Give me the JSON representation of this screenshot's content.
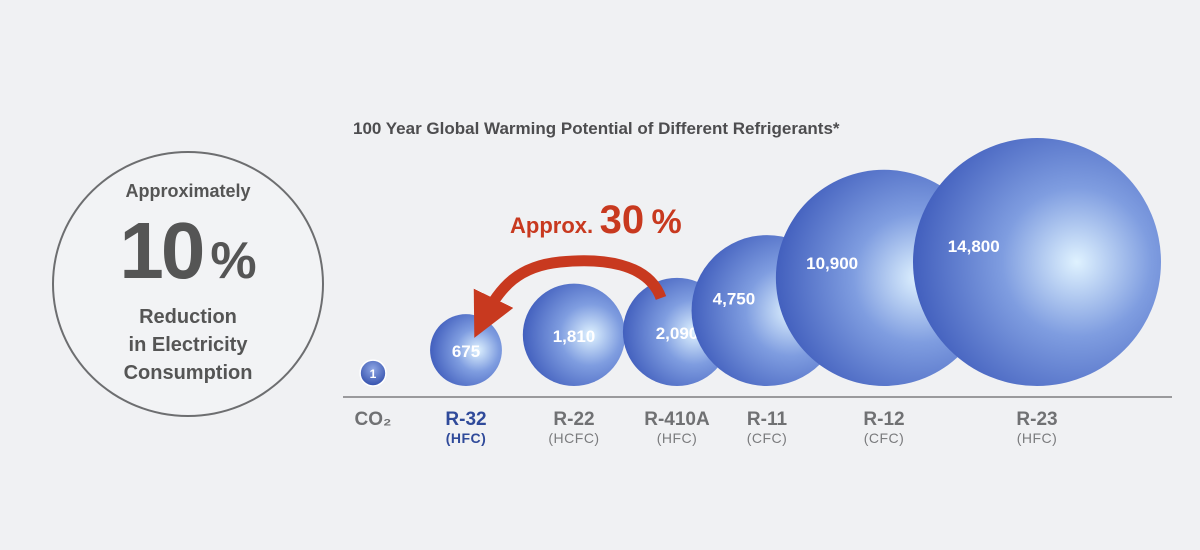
{
  "stat": {
    "intro": "Approximately",
    "value": "10",
    "unit": "%",
    "line1": "Reduction",
    "line2": "in Electricity",
    "line3": "Consumption"
  },
  "annotation": {
    "prefix": "Approx.",
    "value": "30",
    "unit": "%",
    "color": "#c8391f"
  },
  "chart_data": {
    "type": "bubble",
    "title": "100 Year Global Warming Potential of Different Refrigerants*",
    "highlight": "R-32",
    "bubble_color": "#3f5fc0",
    "highlight_color": "#2f4a9a",
    "categories": [
      {
        "name": "CO₂",
        "class": "",
        "value": 1,
        "label": "1"
      },
      {
        "name": "R-32",
        "class": "(HFC)",
        "value": 675,
        "label": "675"
      },
      {
        "name": "R-22",
        "class": "(HCFC)",
        "value": 1810,
        "label": "1,810"
      },
      {
        "name": "R-410A",
        "class": "(HFC)",
        "value": 2090,
        "label": "2,090"
      },
      {
        "name": "R-11",
        "class": "(CFC)",
        "value": 4750,
        "label": "4,750"
      },
      {
        "name": "R-12",
        "class": "(CFC)",
        "value": 10900,
        "label": "10,900"
      },
      {
        "name": "R-23",
        "class": "(HFC)",
        "value": 14800,
        "label": "14,800"
      }
    ]
  }
}
